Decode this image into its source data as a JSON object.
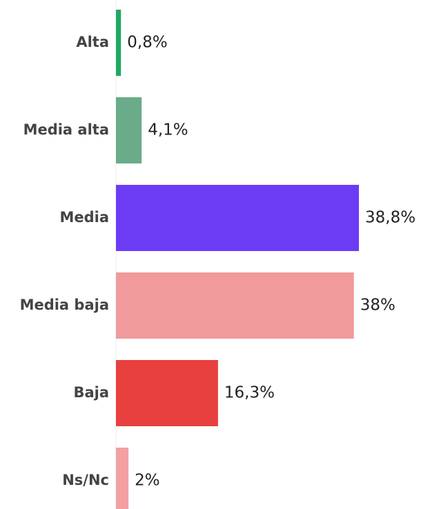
{
  "chart_data": {
    "type": "bar",
    "orientation": "horizontal",
    "categories": [
      "Alta",
      "Media alta",
      "Media",
      "Media baja",
      "Baja",
      "Ns/Nc"
    ],
    "values": [
      0.8,
      4.1,
      38.8,
      38,
      16.3,
      2
    ],
    "value_labels": [
      "0,8%",
      "4,1%",
      "38,8%",
      "38%",
      "16,3%",
      "2%"
    ],
    "colors": [
      "#1fa862",
      "#6aab8a",
      "#6c3cf5",
      "#f09a9c",
      "#e8403f",
      "#f2a0a2"
    ]
  }
}
